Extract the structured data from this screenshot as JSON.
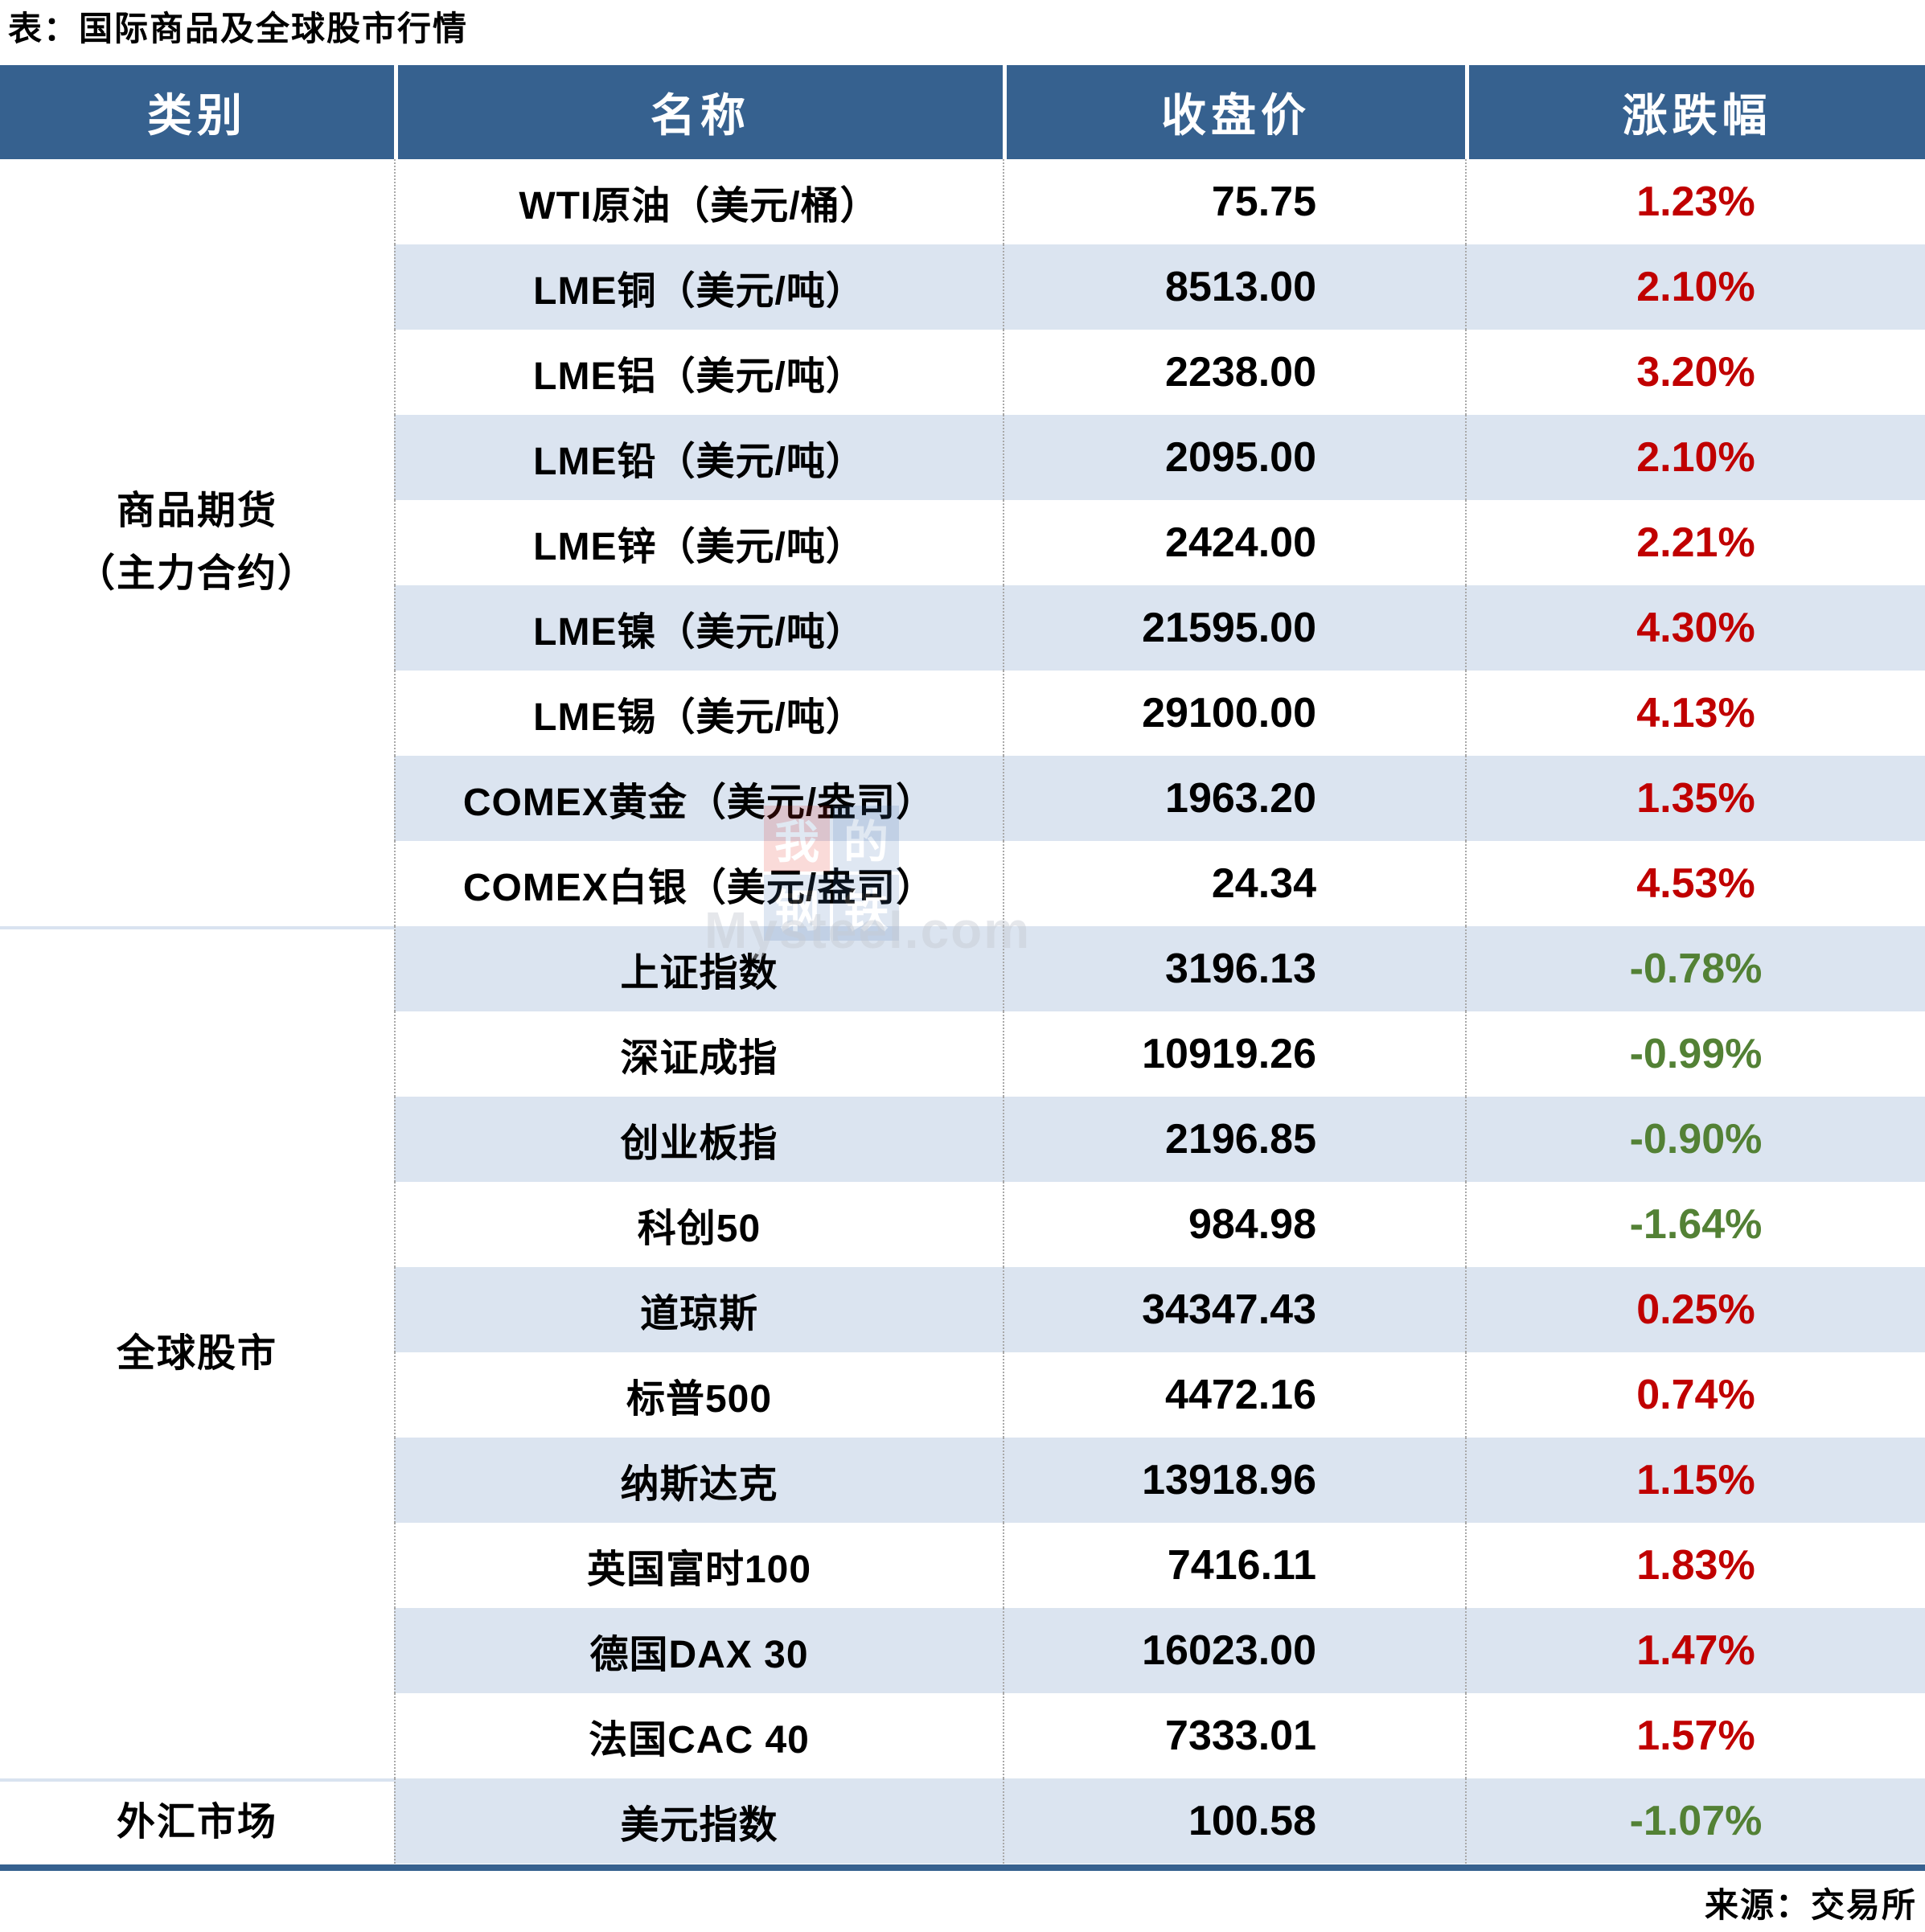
{
  "page": {
    "title": "表：国际商品及全球股市行情",
    "source": "来源：交易所"
  },
  "colors": {
    "header_bg": "#36618F",
    "stripe_bg": "#DBE4F0",
    "bottom_bar": "#36618F",
    "up_red": "#C00000",
    "down_green": "#538135",
    "category_divider": "#D9E3F0"
  },
  "table": {
    "columns": [
      "类别",
      "名称",
      "收盘价",
      "涨跌幅"
    ],
    "groups": [
      {
        "label_lines": [
          "商品期货",
          "（主力合约）"
        ],
        "rows": 9
      },
      {
        "label_lines": [
          "全球股市"
        ],
        "rows": 10
      },
      {
        "label_lines": [
          "外汇市场"
        ],
        "rows": 1
      }
    ],
    "rows": [
      {
        "name": "WTI原油（美元/桶）",
        "close": "75.75",
        "change": "1.23%",
        "dir": "up"
      },
      {
        "name": "LME铜（美元/吨）",
        "close": "8513.00",
        "change": "2.10%",
        "dir": "up"
      },
      {
        "name": "LME铝（美元/吨）",
        "close": "2238.00",
        "change": "3.20%",
        "dir": "up"
      },
      {
        "name": "LME铅（美元/吨）",
        "close": "2095.00",
        "change": "2.10%",
        "dir": "up"
      },
      {
        "name": "LME锌（美元/吨）",
        "close": "2424.00",
        "change": "2.21%",
        "dir": "up"
      },
      {
        "name": "LME镍（美元/吨）",
        "close": "21595.00",
        "change": "4.30%",
        "dir": "up"
      },
      {
        "name": "LME锡（美元/吨）",
        "close": "29100.00",
        "change": "4.13%",
        "dir": "up"
      },
      {
        "name": "COMEX黄金（美元/盎司）",
        "close": "1963.20",
        "change": "1.35%",
        "dir": "up"
      },
      {
        "name": "COMEX白银（美元/盎司）",
        "close": "24.34",
        "change": "4.53%",
        "dir": "up"
      },
      {
        "name": "上证指数",
        "close": "3196.13",
        "change": "-0.78%",
        "dir": "down"
      },
      {
        "name": "深证成指",
        "close": "10919.26",
        "change": "-0.99%",
        "dir": "down"
      },
      {
        "name": "创业板指",
        "close": "2196.85",
        "change": "-0.90%",
        "dir": "down"
      },
      {
        "name": "科创50",
        "close": "984.98",
        "change": "-1.64%",
        "dir": "down"
      },
      {
        "name": "道琼斯",
        "close": "34347.43",
        "change": "0.25%",
        "dir": "up"
      },
      {
        "name": "标普500",
        "close": "4472.16",
        "change": "0.74%",
        "dir": "up"
      },
      {
        "name": "纳斯达克",
        "close": "13918.96",
        "change": "1.15%",
        "dir": "up"
      },
      {
        "name": "英国富时100",
        "close": "7416.11",
        "change": "1.83%",
        "dir": "up"
      },
      {
        "name": "德国DAX 30",
        "close": "16023.00",
        "change": "1.47%",
        "dir": "up"
      },
      {
        "name": "法国CAC 40",
        "close": "7333.01",
        "change": "1.57%",
        "dir": "up"
      },
      {
        "name": "美元指数",
        "close": "100.58",
        "change": "-1.07%",
        "dir": "down"
      }
    ]
  },
  "watermark": {
    "logo_chars": [
      "我",
      "的",
      "钢",
      "铁"
    ],
    "text": "Mysteel.com"
  },
  "chart_data": {
    "type": "table",
    "title": "表：国际商品及全球股市行情",
    "columns": [
      "类别",
      "名称",
      "收盘价",
      "涨跌幅"
    ],
    "rows": [
      [
        "商品期货（主力合约）",
        "WTI原油（美元/桶）",
        75.75,
        "1.23%"
      ],
      [
        "商品期货（主力合约）",
        "LME铜（美元/吨）",
        8513.0,
        "2.10%"
      ],
      [
        "商品期货（主力合约）",
        "LME铝（美元/吨）",
        2238.0,
        "3.20%"
      ],
      [
        "商品期货（主力合约）",
        "LME铅（美元/吨）",
        2095.0,
        "2.10%"
      ],
      [
        "商品期货（主力合约）",
        "LME锌（美元/吨）",
        2424.0,
        "2.21%"
      ],
      [
        "商品期货（主力合约）",
        "LME镍（美元/吨）",
        21595.0,
        "4.30%"
      ],
      [
        "商品期货（主力合约）",
        "LME锡（美元/吨）",
        29100.0,
        "4.13%"
      ],
      [
        "商品期货（主力合约）",
        "COMEX黄金（美元/盎司）",
        1963.2,
        "1.35%"
      ],
      [
        "商品期货（主力合约）",
        "COMEX白银（美元/盎司）",
        24.34,
        "4.53%"
      ],
      [
        "全球股市",
        "上证指数",
        3196.13,
        "-0.78%"
      ],
      [
        "全球股市",
        "深证成指",
        10919.26,
        "-0.99%"
      ],
      [
        "全球股市",
        "创业板指",
        2196.85,
        "-0.90%"
      ],
      [
        "全球股市",
        "科创50",
        984.98,
        "-1.64%"
      ],
      [
        "全球股市",
        "道琼斯",
        34347.43,
        "0.25%"
      ],
      [
        "全球股市",
        "标普500",
        4472.16,
        "0.74%"
      ],
      [
        "全球股市",
        "纳斯达克",
        13918.96,
        "1.15%"
      ],
      [
        "全球股市",
        "英国富时100",
        7416.11,
        "1.83%"
      ],
      [
        "全球股市",
        "德国DAX 30",
        16023.0,
        "1.47%"
      ],
      [
        "全球股市",
        "法国CAC 40",
        7333.01,
        "1.57%"
      ],
      [
        "外汇市场",
        "美元指数",
        100.58,
        "-1.07%"
      ]
    ],
    "notes": "red = 上涨(up), green = 下跌(down); source footer 来源：交易所"
  }
}
